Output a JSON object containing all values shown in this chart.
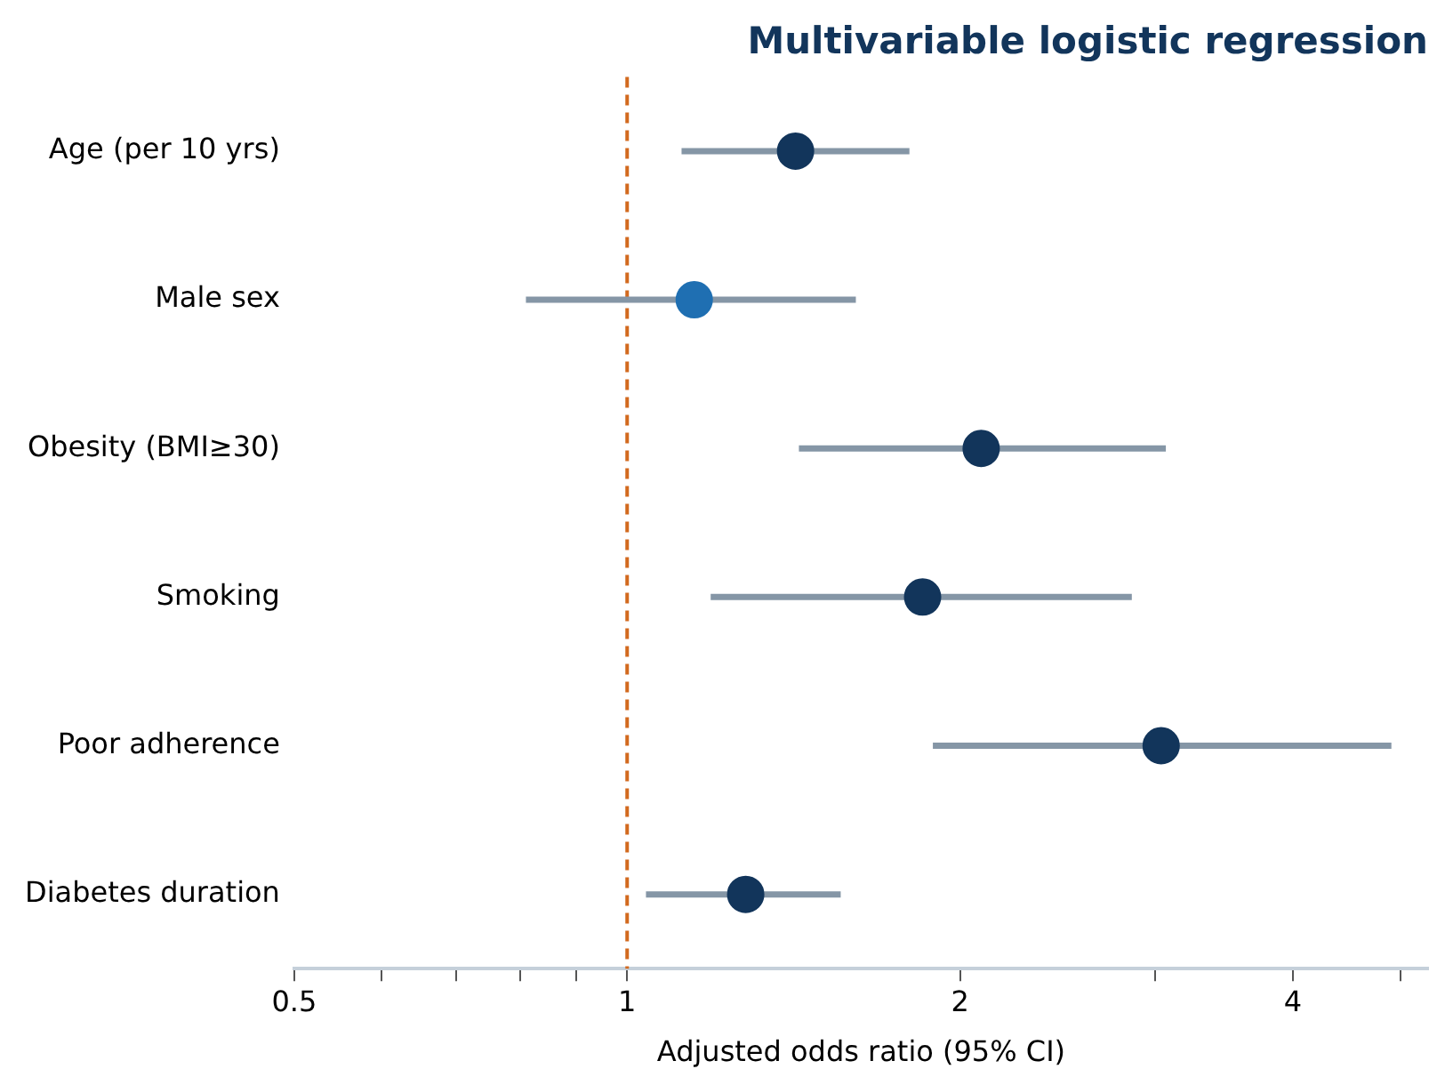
{
  "chart_data": {
    "type": "scatter",
    "orientation": "horizontal",
    "title": "Multivariable logistic regression",
    "xlabel": "Adjusted odds ratio (95% CI)",
    "categories": [
      "Age (per 10 yrs)",
      "Male sex",
      "Obesity (BMI≥30)",
      "Smoking",
      "Poor adherence",
      "Diabetes duration"
    ],
    "series": [
      {
        "values": [
          1.42,
          1.15,
          2.09,
          1.85,
          3.04,
          1.28
        ],
        "colors": [
          "#12355b",
          "#1f6fb2",
          "#12355b",
          "#12355b",
          "#12355b",
          "#12355b"
        ],
        "errors": [
          [
            1.12,
            1.8
          ],
          [
            0.81,
            1.61
          ],
          [
            1.43,
            3.07
          ],
          [
            1.19,
            2.86
          ],
          [
            1.89,
            4.91
          ],
          [
            1.04,
            1.56
          ]
        ]
      }
    ],
    "log": "x",
    "xlim": [
      0.5,
      5.3
    ],
    "xticks": [
      0.5,
      {
        "value": 0.6,
        "label": null
      },
      {
        "value": 0.7,
        "label": null
      },
      {
        "value": 0.8,
        "label": null
      },
      {
        "value": 0.9,
        "label": null
      },
      1,
      2,
      {
        "value": 3,
        "label": null
      },
      4,
      {
        "value": 5,
        "label": null
      }
    ],
    "ref_lines": [
      {
        "axis": "x",
        "value": 1,
        "color": "#d2691e",
        "line_style": "dashed"
      }
    ],
    "grid": false,
    "legend": false,
    "marker": "circle"
  }
}
